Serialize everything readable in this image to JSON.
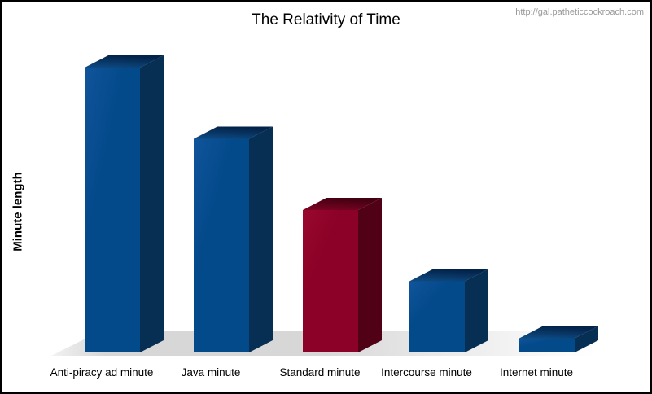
{
  "header": {
    "watermark": "http://gal.patheticcockroach.com"
  },
  "chart_data": {
    "type": "bar",
    "style": "3d-columns",
    "title": "The Relativity of Time",
    "xlabel": "",
    "ylabel": "Minute length",
    "legend": "none",
    "grid": false,
    "axis_tick_labels_shown": false,
    "categories": [
      "Anti-piracy ad minute",
      "Java minute",
      "Standard minute",
      "Intercourse minute",
      "Internet minute"
    ],
    "values": [
      2.0,
      1.5,
      1.0,
      0.5,
      0.1
    ],
    "values_unit": "relative minute length (Standard minute = 1)",
    "bar_color_keys": [
      "blue",
      "blue",
      "red",
      "blue",
      "blue"
    ],
    "palette": {
      "blue": {
        "front": "#034A8B",
        "front_light": "#11549A",
        "side": "#072E53",
        "top_light": "#0E4C85",
        "top_dark": "#032349"
      },
      "red": {
        "front": "#8C0127",
        "front_light": "#99082F",
        "side": "#510116",
        "top_light": "#7E0324",
        "top_dark": "#430011"
      }
    },
    "floor_colors": {
      "left_tip": "#f2f2f2",
      "main": "#d7d7d7",
      "fade_to": "#ffffff"
    },
    "text_color": "#000000",
    "watermark_color": "#999999"
  }
}
